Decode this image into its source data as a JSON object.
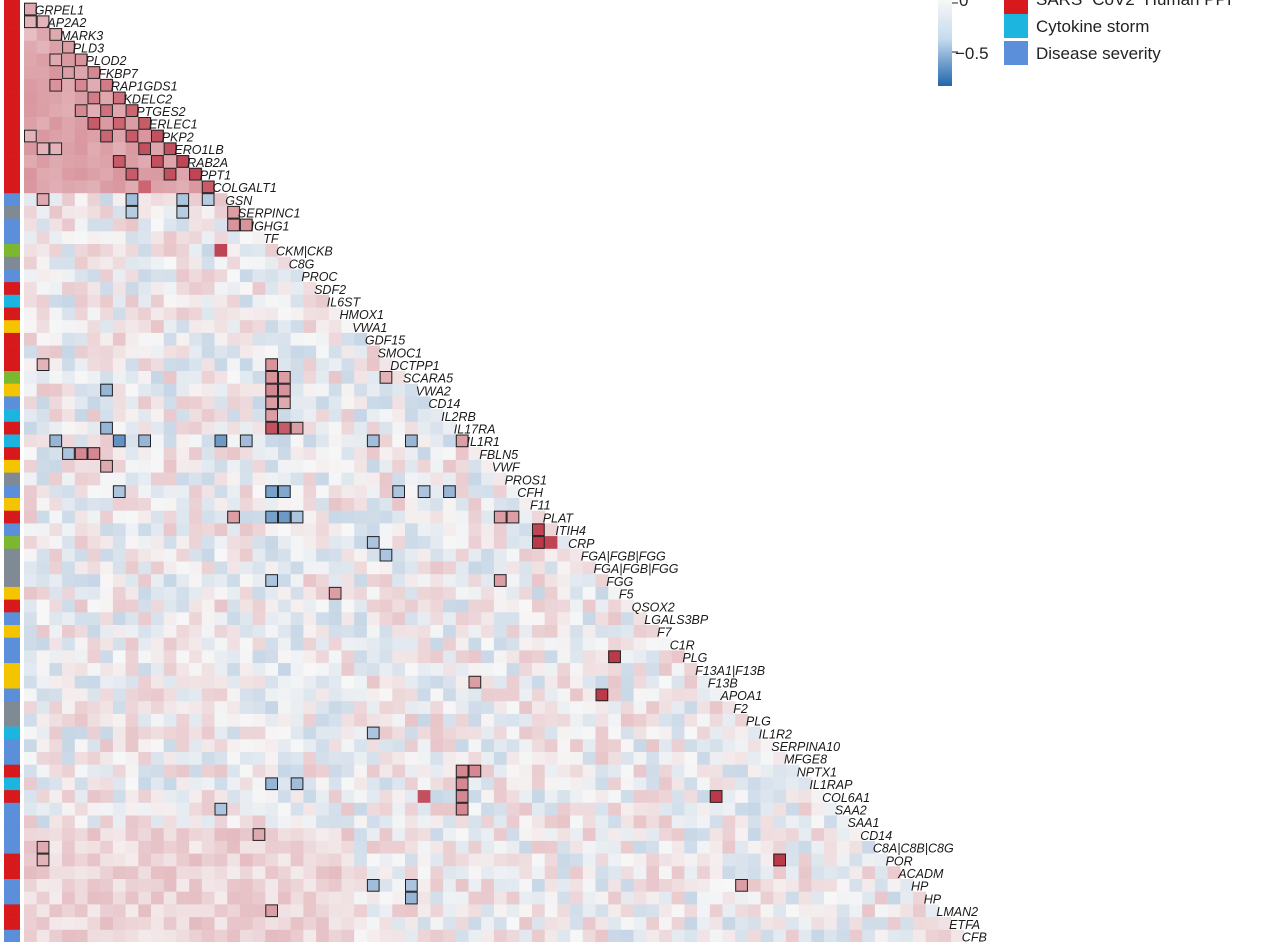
{
  "chart_data": {
    "type": "heatmap",
    "layout_note": "lower-triangular correlation matrix, diagonal gene labels",
    "color_scale": {
      "low": "#2166ac",
      "mid": "#f7f7f7",
      "high": "#b2182b"
    },
    "colorbar": {
      "ticks": [
        "0",
        "−0.5"
      ]
    },
    "legend": [
      {
        "label": "SARS−CoV2−Human PPI",
        "color": "#d7191c"
      },
      {
        "label": "Cytokine storm",
        "color": "#1cb5e0"
      },
      {
        "label": "Disease severity",
        "color": "#5b8fd9"
      }
    ],
    "category_colors": {
      "ppi": "#d7191c",
      "cytokine": "#1cb5e0",
      "severity": "#5b8fd9",
      "gray": "#7f8a94",
      "yellow": "#f5c400",
      "green": "#7cb82f"
    },
    "rows": [
      {
        "gene": "",
        "category": "ppi"
      },
      {
        "gene": "GRPEL1",
        "category": "ppi"
      },
      {
        "gene": "AP2A2",
        "category": "ppi"
      },
      {
        "gene": "MARK3",
        "category": "ppi"
      },
      {
        "gene": "PLD3",
        "category": "ppi"
      },
      {
        "gene": "PLOD2",
        "category": "ppi"
      },
      {
        "gene": "FKBP7",
        "category": "ppi"
      },
      {
        "gene": "RAP1GDS1",
        "category": "ppi"
      },
      {
        "gene": "KDELC2",
        "category": "ppi"
      },
      {
        "gene": "PTGES2",
        "category": "ppi"
      },
      {
        "gene": "ERLEC1",
        "category": "ppi"
      },
      {
        "gene": "PKP2",
        "category": "ppi"
      },
      {
        "gene": "ERO1LB",
        "category": "ppi"
      },
      {
        "gene": "RAB2A",
        "category": "ppi"
      },
      {
        "gene": "PPT1",
        "category": "ppi"
      },
      {
        "gene": "COLGALT1",
        "category": "ppi"
      },
      {
        "gene": "GSN",
        "category": "severity"
      },
      {
        "gene": "SERPINC1",
        "category": "gray"
      },
      {
        "gene": "IGHG1",
        "category": "severity"
      },
      {
        "gene": "TF",
        "category": "severity"
      },
      {
        "gene": "CKM|CKB",
        "category": "green"
      },
      {
        "gene": "C8G",
        "category": "gray"
      },
      {
        "gene": "PROC",
        "category": "severity"
      },
      {
        "gene": "SDF2",
        "category": "ppi"
      },
      {
        "gene": "IL6ST",
        "category": "cytokine"
      },
      {
        "gene": "HMOX1",
        "category": "ppi"
      },
      {
        "gene": "VWA1",
        "category": "yellow"
      },
      {
        "gene": "GDF15",
        "category": "ppi"
      },
      {
        "gene": "SMOC1",
        "category": "ppi"
      },
      {
        "gene": "DCTPP1",
        "category": "ppi"
      },
      {
        "gene": "SCARA5",
        "category": "green"
      },
      {
        "gene": "VWA2",
        "category": "yellow"
      },
      {
        "gene": "CD14",
        "category": "severity"
      },
      {
        "gene": "IL2RB",
        "category": "cytokine"
      },
      {
        "gene": "IL17RA",
        "category": "ppi"
      },
      {
        "gene": "IL1R1",
        "category": "cytokine"
      },
      {
        "gene": "FBLN5",
        "category": "ppi"
      },
      {
        "gene": "VWF",
        "category": "yellow"
      },
      {
        "gene": "PROS1",
        "category": "gray"
      },
      {
        "gene": "CFH",
        "category": "severity"
      },
      {
        "gene": "F11",
        "category": "yellow"
      },
      {
        "gene": "PLAT",
        "category": "ppi"
      },
      {
        "gene": "ITIH4",
        "category": "severity"
      },
      {
        "gene": "CRP",
        "category": "green"
      },
      {
        "gene": "FGA|FGB|FGG",
        "category": "gray"
      },
      {
        "gene": "FGA|FGB|FGG",
        "category": "gray"
      },
      {
        "gene": "FGG",
        "category": "gray"
      },
      {
        "gene": "F5",
        "category": "yellow"
      },
      {
        "gene": "QSOX2",
        "category": "ppi"
      },
      {
        "gene": "LGALS3BP",
        "category": "severity"
      },
      {
        "gene": "F7",
        "category": "yellow"
      },
      {
        "gene": "C1R",
        "category": "severity"
      },
      {
        "gene": "PLG",
        "category": "severity"
      },
      {
        "gene": "F13A1|F13B",
        "category": "yellow"
      },
      {
        "gene": "F13B",
        "category": "yellow"
      },
      {
        "gene": "APOA1",
        "category": "severity"
      },
      {
        "gene": "F2",
        "category": "gray"
      },
      {
        "gene": "PLG",
        "category": "gray"
      },
      {
        "gene": "IL1R2",
        "category": "cytokine"
      },
      {
        "gene": "SERPINA10",
        "category": "severity"
      },
      {
        "gene": "MFGE8",
        "category": "severity"
      },
      {
        "gene": "NPTX1",
        "category": "ppi"
      },
      {
        "gene": "IL1RAP",
        "category": "cytokine"
      },
      {
        "gene": "COL6A1",
        "category": "ppi"
      },
      {
        "gene": "SAA2",
        "category": "severity"
      },
      {
        "gene": "SAA1",
        "category": "severity"
      },
      {
        "gene": "CD14",
        "category": "severity"
      },
      {
        "gene": "C8A|C8B|C8G",
        "category": "severity"
      },
      {
        "gene": "POR",
        "category": "ppi"
      },
      {
        "gene": "ACADM",
        "category": "ppi"
      },
      {
        "gene": "HP",
        "category": "severity"
      },
      {
        "gene": "HP",
        "category": "severity"
      },
      {
        "gene": "LMAN2",
        "category": "ppi"
      },
      {
        "gene": "ETFA",
        "category": "ppi"
      },
      {
        "gene": "CFB",
        "category": "severity"
      }
    ],
    "cells": [
      [
        1,
        0,
        0.35,
        1
      ],
      [
        2,
        0,
        0.3,
        1
      ],
      [
        2,
        1,
        0.3,
        1
      ],
      [
        3,
        0,
        0.25,
        0
      ],
      [
        3,
        2,
        0.35,
        1
      ],
      [
        4,
        1,
        0.3,
        0
      ],
      [
        4,
        3,
        0.4,
        1
      ],
      [
        5,
        2,
        0.35,
        1
      ],
      [
        5,
        4,
        0.45,
        1
      ],
      [
        6,
        3,
        0.4,
        1
      ],
      [
        6,
        5,
        0.5,
        1
      ],
      [
        7,
        2,
        0.45,
        1
      ],
      [
        7,
        4,
        0.5,
        1
      ],
      [
        7,
        6,
        0.55,
        1
      ],
      [
        8,
        5,
        0.55,
        1
      ],
      [
        8,
        7,
        0.6,
        1
      ],
      [
        9,
        4,
        0.5,
        1
      ],
      [
        9,
        6,
        0.6,
        1
      ],
      [
        9,
        8,
        0.65,
        1
      ],
      [
        10,
        5,
        0.7,
        1
      ],
      [
        10,
        7,
        0.65,
        1
      ],
      [
        10,
        9,
        0.7,
        1
      ],
      [
        11,
        0,
        0.3,
        1
      ],
      [
        11,
        6,
        0.65,
        1
      ],
      [
        11,
        8,
        0.7,
        1
      ],
      [
        11,
        10,
        0.75,
        1
      ],
      [
        12,
        1,
        0.3,
        1
      ],
      [
        12,
        2,
        0.3,
        1
      ],
      [
        12,
        9,
        0.75,
        1
      ],
      [
        12,
        11,
        0.75,
        1
      ],
      [
        13,
        7,
        0.7,
        1
      ],
      [
        13,
        10,
        0.75,
        1
      ],
      [
        13,
        12,
        0.8,
        1
      ],
      [
        14,
        8,
        0.7,
        1
      ],
      [
        14,
        11,
        0.75,
        1
      ],
      [
        14,
        13,
        0.8,
        1
      ],
      [
        15,
        9,
        0.65,
        0
      ],
      [
        15,
        14,
        0.7,
        1
      ],
      [
        16,
        1,
        0.35,
        1
      ],
      [
        16,
        8,
        -0.4,
        1
      ],
      [
        16,
        12,
        -0.35,
        1
      ],
      [
        16,
        14,
        -0.3,
        1
      ],
      [
        17,
        8,
        -0.3,
        1
      ],
      [
        17,
        12,
        -0.3,
        1
      ],
      [
        17,
        16,
        0.4,
        1
      ],
      [
        18,
        16,
        0.45,
        1
      ],
      [
        18,
        17,
        0.45,
        1
      ],
      [
        20,
        15,
        0.8,
        0
      ],
      [
        29,
        1,
        0.3,
        1
      ],
      [
        29,
        19,
        0.45,
        1
      ],
      [
        30,
        19,
        0.45,
        1
      ],
      [
        30,
        20,
        0.4,
        1
      ],
      [
        30,
        28,
        0.3,
        1
      ],
      [
        31,
        6,
        -0.45,
        1
      ],
      [
        31,
        19,
        0.5,
        1
      ],
      [
        31,
        20,
        0.45,
        1
      ],
      [
        32,
        19,
        0.4,
        1
      ],
      [
        32,
        20,
        0.35,
        1
      ],
      [
        33,
        19,
        0.4,
        1
      ],
      [
        34,
        6,
        -0.45,
        1
      ],
      [
        34,
        19,
        0.75,
        1
      ],
      [
        34,
        20,
        0.7,
        1
      ],
      [
        34,
        21,
        0.4,
        1
      ],
      [
        35,
        2,
        -0.45,
        1
      ],
      [
        35,
        7,
        -0.7,
        1
      ],
      [
        35,
        9,
        -0.45,
        1
      ],
      [
        35,
        15,
        -0.65,
        1
      ],
      [
        35,
        17,
        -0.4,
        1
      ],
      [
        35,
        27,
        -0.4,
        1
      ],
      [
        35,
        30,
        -0.45,
        1
      ],
      [
        35,
        34,
        0.4,
        1
      ],
      [
        36,
        3,
        -0.35,
        1
      ],
      [
        36,
        4,
        0.5,
        1
      ],
      [
        36,
        5,
        0.5,
        1
      ],
      [
        37,
        6,
        0.35,
        1
      ],
      [
        39,
        7,
        -0.35,
        1
      ],
      [
        39,
        19,
        -0.6,
        1
      ],
      [
        39,
        20,
        -0.55,
        1
      ],
      [
        39,
        29,
        -0.35,
        1
      ],
      [
        39,
        31,
        -0.35,
        1
      ],
      [
        39,
        33,
        -0.45,
        1
      ],
      [
        41,
        16,
        0.4,
        1
      ],
      [
        41,
        19,
        -0.6,
        1
      ],
      [
        41,
        20,
        -0.65,
        1
      ],
      [
        41,
        21,
        -0.35,
        1
      ],
      [
        41,
        37,
        0.4,
        1
      ],
      [
        41,
        38,
        0.4,
        1
      ],
      [
        42,
        40,
        0.8,
        1
      ],
      [
        43,
        27,
        -0.35,
        1
      ],
      [
        43,
        40,
        0.85,
        1
      ],
      [
        43,
        41,
        0.8,
        0
      ],
      [
        44,
        28,
        -0.35,
        1
      ],
      [
        46,
        19,
        -0.35,
        1
      ],
      [
        46,
        37,
        0.4,
        1
      ],
      [
        47,
        24,
        0.4,
        1
      ],
      [
        52,
        46,
        0.85,
        1
      ],
      [
        54,
        35,
        0.4,
        1
      ],
      [
        55,
        45,
        0.85,
        1
      ],
      [
        58,
        27,
        -0.35,
        1
      ],
      [
        61,
        34,
        0.5,
        1
      ],
      [
        61,
        35,
        0.5,
        1
      ],
      [
        62,
        19,
        -0.45,
        1
      ],
      [
        62,
        21,
        -0.4,
        1
      ],
      [
        62,
        34,
        0.5,
        1
      ],
      [
        63,
        31,
        0.75,
        0
      ],
      [
        63,
        34,
        0.5,
        1
      ],
      [
        63,
        54,
        0.85,
        1
      ],
      [
        64,
        15,
        -0.35,
        1
      ],
      [
        64,
        34,
        0.5,
        1
      ],
      [
        66,
        18,
        0.35,
        1
      ],
      [
        67,
        1,
        0.35,
        1
      ],
      [
        68,
        1,
        0.3,
        1
      ],
      [
        68,
        59,
        0.85,
        1
      ],
      [
        70,
        27,
        -0.4,
        1
      ],
      [
        70,
        30,
        -0.35,
        1
      ],
      [
        70,
        56,
        0.4,
        1
      ],
      [
        71,
        30,
        -0.45,
        1
      ],
      [
        72,
        19,
        0.4,
        1
      ]
    ]
  }
}
